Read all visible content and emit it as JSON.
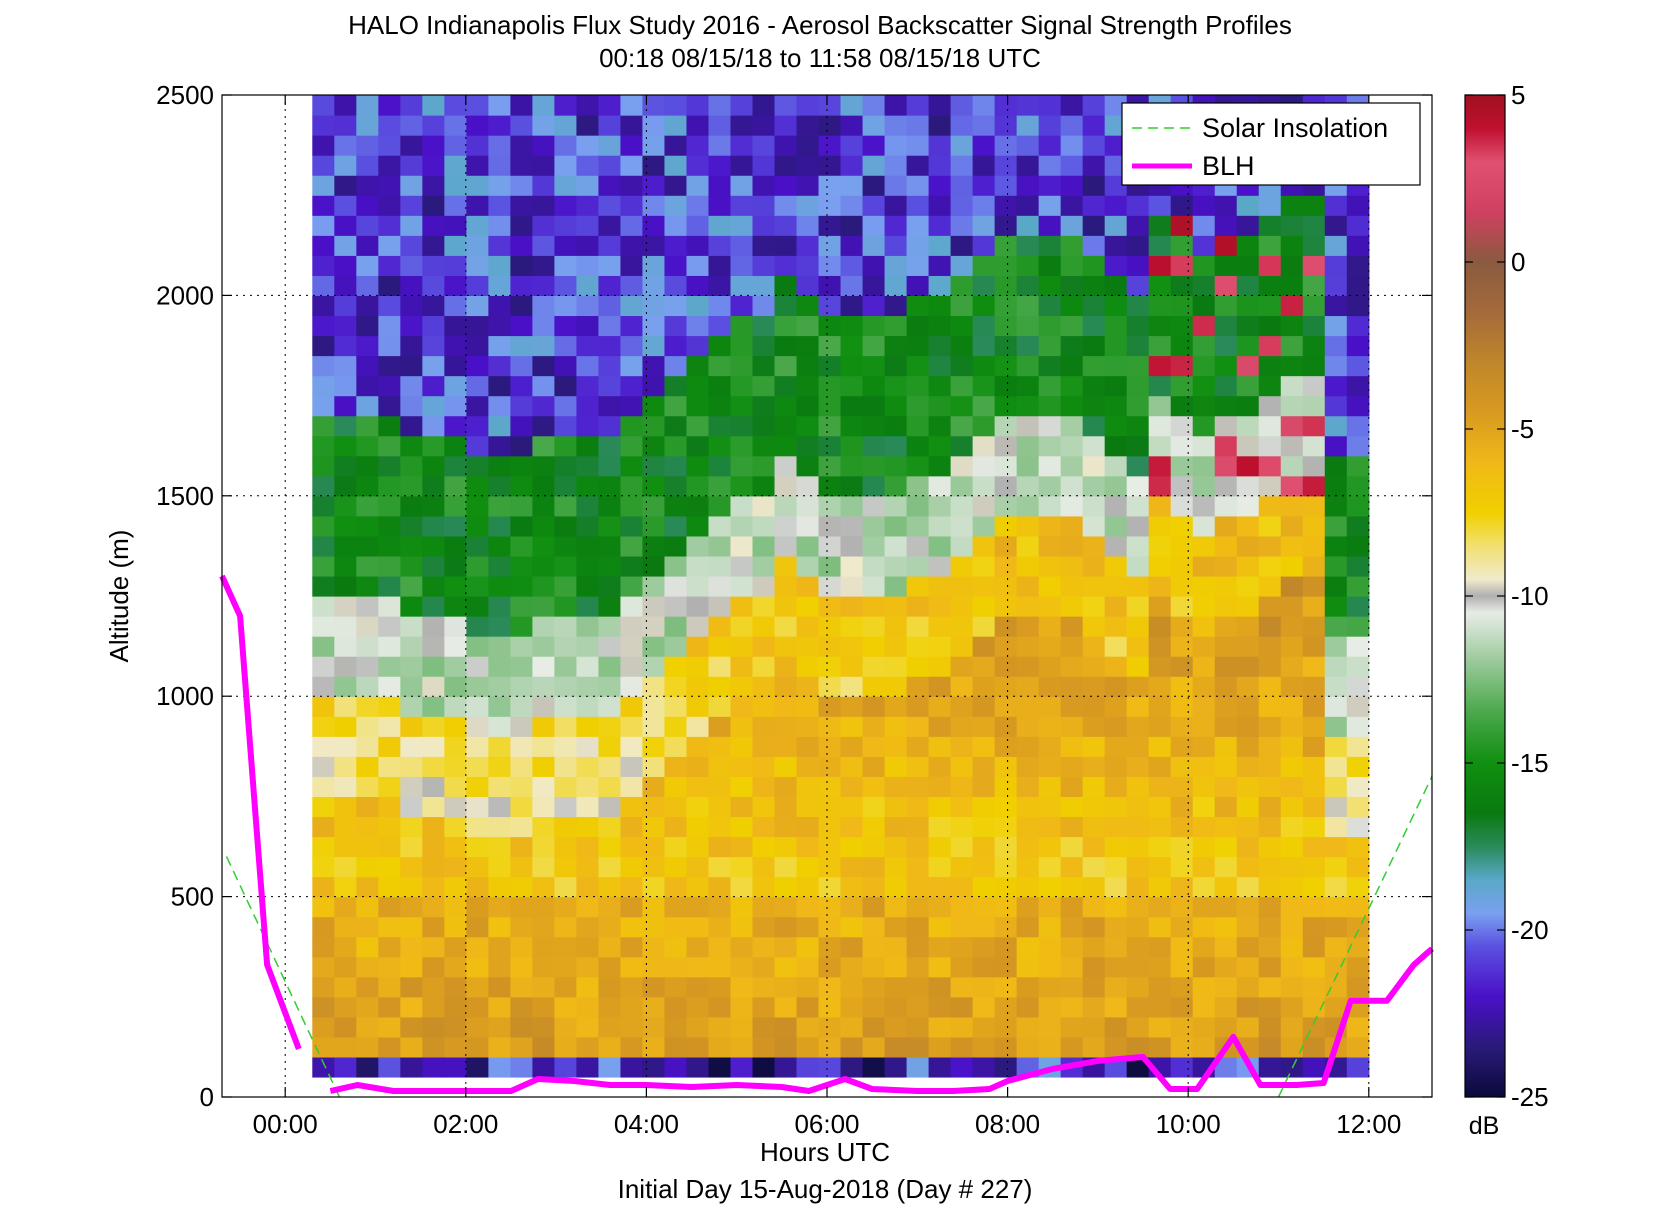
{
  "chart_data": {
    "type": "heatmap",
    "title": "HALO Indianapolis Flux Study 2016 - Aerosol Backscatter Signal Strength Profiles",
    "subtitle": "00:18 08/15/18 to 11:58 08/15/18  UTC",
    "xlabel": "Hours UTC",
    "xlabel2": "Initial Day 15-Aug-2018 (Day # 227)",
    "ylabel": "Altitude (m)",
    "colorbar_label": "dB",
    "xlim": [
      -0.7,
      12.7
    ],
    "ylim": [
      0,
      2500
    ],
    "clim": [
      -25,
      5
    ],
    "x_ticks": [
      0,
      2,
      4,
      6,
      8,
      10,
      12
    ],
    "x_tick_labels": [
      "00:00",
      "02:00",
      "04:00",
      "06:00",
      "08:00",
      "10:00",
      "12:00"
    ],
    "y_ticks": [
      0,
      500,
      1000,
      1500,
      2000,
      2500
    ],
    "y_tick_labels": [
      "0",
      "500",
      "1000",
      "1500",
      "2000",
      "2500"
    ],
    "colorbar_ticks": [
      -25,
      -20,
      -15,
      -10,
      -5,
      0,
      5
    ],
    "colorbar_tick_labels": [
      "-25",
      "-20",
      "-15",
      "-10",
      "-5",
      "0",
      "5"
    ],
    "grid": true,
    "legend_position": "top-right",
    "data_time_range_hours": [
      0.3,
      12.0
    ],
    "altitude_range_m": [
      50,
      2500
    ],
    "series": [
      {
        "name": "Solar Insolation",
        "style": "dashed",
        "color": "#33cc33",
        "segments": [
          {
            "x": [
              -0.65,
              0.6
            ],
            "y": [
              600,
              0
            ]
          },
          {
            "x": [
              11.0,
              12.7
            ],
            "y": [
              0,
              800
            ]
          }
        ]
      },
      {
        "name": "BLH",
        "style": "solid",
        "color": "#ff00ff",
        "segments": [
          {
            "x": [
              -0.7,
              -0.5,
              -0.2,
              0.15
            ],
            "y": [
              1300,
              1200,
              330,
              120
            ]
          },
          {
            "x": [
              0.5,
              0.8,
              1.2,
              1.5,
              2.0,
              2.5,
              2.8,
              3.2,
              3.6,
              4.0,
              4.5,
              5.0,
              5.5,
              5.8,
              6.2,
              6.5,
              7.0,
              7.4,
              7.8,
              8.0,
              8.5,
              9.0,
              9.5,
              9.8,
              10.1,
              10.5,
              10.8,
              11.2,
              11.5,
              11.8,
              12.2,
              12.5,
              12.7
            ],
            "y": [
              15,
              30,
              15,
              15,
              15,
              15,
              45,
              40,
              30,
              30,
              25,
              30,
              25,
              15,
              45,
              20,
              15,
              15,
              20,
              40,
              70,
              90,
              100,
              20,
              20,
              150,
              30,
              30,
              35,
              240,
              240,
              330,
              370
            ]
          }
        ]
      }
    ],
    "colormap": [
      [
        -25,
        "#0a0a3a"
      ],
      [
        -23.5,
        "#2a1a7a"
      ],
      [
        -22,
        "#4a10c8"
      ],
      [
        -20.5,
        "#5a50e0"
      ],
      [
        -19.5,
        "#7aa0f0"
      ],
      [
        -18.5,
        "#5aa8c8"
      ],
      [
        -17.5,
        "#2a8a5a"
      ],
      [
        -16.5,
        "#0a7a10"
      ],
      [
        -15,
        "#108f10"
      ],
      [
        -13.5,
        "#4aa84a"
      ],
      [
        -12,
        "#98c898"
      ],
      [
        -10.5,
        "#e8ece6"
      ],
      [
        -10,
        "#b0b0b0"
      ],
      [
        -9.5,
        "#f0eacc"
      ],
      [
        -8.5,
        "#f2e070"
      ],
      [
        -7.5,
        "#f0d000"
      ],
      [
        -6,
        "#f0b818"
      ],
      [
        -4.5,
        "#d89a20"
      ],
      [
        -3,
        "#c0862a"
      ],
      [
        -1.5,
        "#a46a3a"
      ],
      [
        0,
        "#8a5a40"
      ],
      [
        1.5,
        "#d04060"
      ],
      [
        3,
        "#e05070"
      ],
      [
        4,
        "#c01030"
      ],
      [
        5,
        "#a01020"
      ]
    ]
  }
}
